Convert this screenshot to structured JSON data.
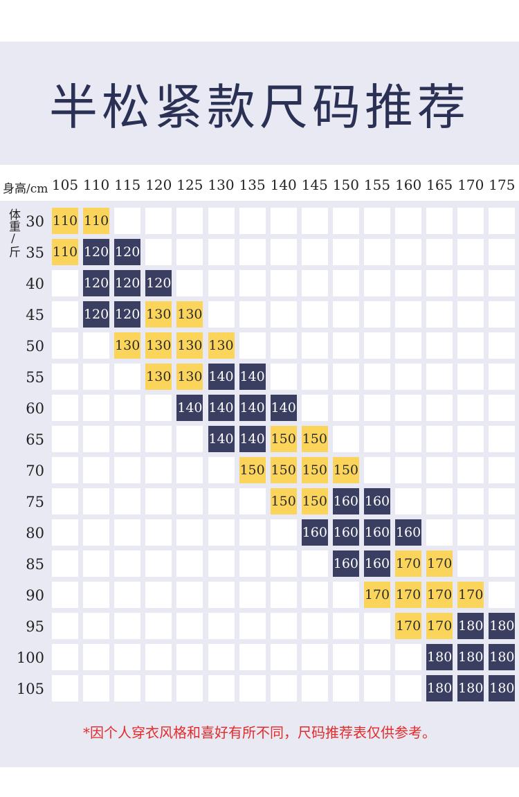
{
  "title": "半松紧款尺码推荐",
  "axis_height_label": "身高/cm",
  "axis_weight_label": "体重/斤",
  "heights": [
    "105",
    "110",
    "115",
    "120",
    "125",
    "130",
    "135",
    "140",
    "145",
    "150",
    "155",
    "160",
    "165",
    "170",
    "175"
  ],
  "weights": [
    "30",
    "35",
    "40",
    "45",
    "50",
    "55",
    "60",
    "65",
    "70",
    "75",
    "80",
    "85",
    "90",
    "95",
    "100",
    "105"
  ],
  "colors": {
    "yellow": "#fbd55b",
    "navy": "#3a3e61",
    "band": "#e9e9f3",
    "note": "#e32b2b"
  },
  "table": [
    [
      [
        "110",
        "y"
      ],
      [
        "110",
        "y"
      ],
      null,
      null,
      null,
      null,
      null,
      null,
      null,
      null,
      null,
      null,
      null,
      null,
      null
    ],
    [
      [
        "110",
        "y"
      ],
      [
        "120",
        "n"
      ],
      [
        "120",
        "n"
      ],
      null,
      null,
      null,
      null,
      null,
      null,
      null,
      null,
      null,
      null,
      null,
      null
    ],
    [
      null,
      [
        "120",
        "n"
      ],
      [
        "120",
        "n"
      ],
      [
        "120",
        "n"
      ],
      null,
      null,
      null,
      null,
      null,
      null,
      null,
      null,
      null,
      null,
      null
    ],
    [
      null,
      [
        "120",
        "n"
      ],
      [
        "120",
        "n"
      ],
      [
        "130",
        "y"
      ],
      [
        "130",
        "y"
      ],
      null,
      null,
      null,
      null,
      null,
      null,
      null,
      null,
      null,
      null
    ],
    [
      null,
      null,
      [
        "130",
        "y"
      ],
      [
        "130",
        "y"
      ],
      [
        "130",
        "y"
      ],
      [
        "130",
        "y"
      ],
      null,
      null,
      null,
      null,
      null,
      null,
      null,
      null,
      null
    ],
    [
      null,
      null,
      null,
      [
        "130",
        "y"
      ],
      [
        "130",
        "y"
      ],
      [
        "140",
        "n"
      ],
      [
        "140",
        "n"
      ],
      null,
      null,
      null,
      null,
      null,
      null,
      null,
      null
    ],
    [
      null,
      null,
      null,
      null,
      [
        "140",
        "n"
      ],
      [
        "140",
        "n"
      ],
      [
        "140",
        "n"
      ],
      [
        "140",
        "n"
      ],
      null,
      null,
      null,
      null,
      null,
      null,
      null
    ],
    [
      null,
      null,
      null,
      null,
      null,
      [
        "140",
        "n"
      ],
      [
        "140",
        "n"
      ],
      [
        "150",
        "y"
      ],
      [
        "150",
        "y"
      ],
      null,
      null,
      null,
      null,
      null,
      null
    ],
    [
      null,
      null,
      null,
      null,
      null,
      null,
      [
        "150",
        "y"
      ],
      [
        "150",
        "y"
      ],
      [
        "150",
        "y"
      ],
      [
        "150",
        "y"
      ],
      null,
      null,
      null,
      null,
      null
    ],
    [
      null,
      null,
      null,
      null,
      null,
      null,
      null,
      [
        "150",
        "y"
      ],
      [
        "150",
        "y"
      ],
      [
        "160",
        "n"
      ],
      [
        "160",
        "n"
      ],
      null,
      null,
      null,
      null
    ],
    [
      null,
      null,
      null,
      null,
      null,
      null,
      null,
      null,
      [
        "160",
        "n"
      ],
      [
        "160",
        "n"
      ],
      [
        "160",
        "n"
      ],
      [
        "160",
        "n"
      ],
      null,
      null,
      null
    ],
    [
      null,
      null,
      null,
      null,
      null,
      null,
      null,
      null,
      null,
      [
        "160",
        "n"
      ],
      [
        "160",
        "n"
      ],
      [
        "170",
        "y"
      ],
      [
        "170",
        "y"
      ],
      null,
      null
    ],
    [
      null,
      null,
      null,
      null,
      null,
      null,
      null,
      null,
      null,
      null,
      [
        "170",
        "y"
      ],
      [
        "170",
        "y"
      ],
      [
        "170",
        "y"
      ],
      [
        "170",
        "y"
      ],
      null
    ],
    [
      null,
      null,
      null,
      null,
      null,
      null,
      null,
      null,
      null,
      null,
      null,
      [
        "170",
        "y"
      ],
      [
        "170",
        "y"
      ],
      [
        "180",
        "n"
      ],
      [
        "180",
        "n"
      ]
    ],
    [
      null,
      null,
      null,
      null,
      null,
      null,
      null,
      null,
      null,
      null,
      null,
      null,
      [
        "180",
        "n"
      ],
      [
        "180",
        "n"
      ],
      [
        "180",
        "n"
      ]
    ],
    [
      null,
      null,
      null,
      null,
      null,
      null,
      null,
      null,
      null,
      null,
      null,
      null,
      [
        "180",
        "n"
      ],
      [
        "180",
        "n"
      ],
      [
        "180",
        "n"
      ]
    ]
  ],
  "note": "*因个人穿衣风格和喜好有所不同，尺码推荐表仅供参考。"
}
